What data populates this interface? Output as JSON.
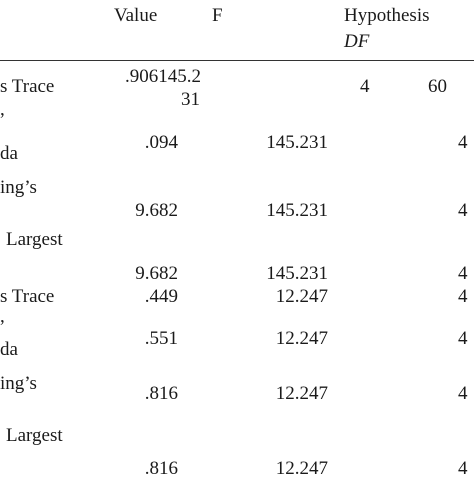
{
  "header": {
    "value": "Value",
    "f": "F",
    "hypothesis": "Hypothesis",
    "df": "DF"
  },
  "rows": [
    {
      "label": "s Trace",
      "label2": ",",
      "value_line1": ".906145.2",
      "value_line2": "31",
      "f": "",
      "hyp": "4",
      "err": "60"
    },
    {
      "label": "da",
      "value": ".094",
      "f": "145.231",
      "hyp": "4"
    },
    {
      "label": "ing’s",
      "value": "9.682",
      "f": "145.231",
      "hyp": "4"
    },
    {
      "label": "Largest",
      "value": "9.682",
      "f": "145.231",
      "hyp": "4"
    },
    {
      "label": "s Trace",
      "label2": ",",
      "value": ".449",
      "f": "12.247",
      "hyp": "4"
    },
    {
      "label": "da",
      "value": ".551",
      "f": "12.247",
      "hyp": "4"
    },
    {
      "label": "ing’s",
      "value": ".816",
      "f": "12.247",
      "hyp": "4"
    },
    {
      "label": "Largest",
      "value": ".816",
      "f": "12.247",
      "hyp": "4"
    }
  ]
}
